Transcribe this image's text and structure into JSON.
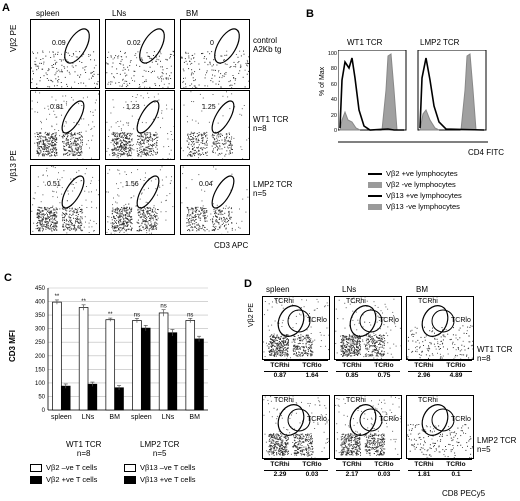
{
  "panels": {
    "A": {
      "letter": "A",
      "col_headers": [
        "spleen",
        "LNs",
        "BM"
      ],
      "y_label_top": "Vβ2 PE",
      "y_label_bottom": "Vβ13 PE",
      "x_label": "CD3 APC",
      "rows": [
        {
          "label": "control A2Kb tg",
          "label_lines": [
            "control",
            "A2Kb tg"
          ],
          "values": [
            "0.09",
            "0.02",
            "0"
          ]
        },
        {
          "label": "WT1 TCR n=8",
          "label_lines": [
            "WT1 TCR",
            "n=8"
          ],
          "values": [
            "0.81",
            "1.23",
            "1.25"
          ]
        },
        {
          "label": "LMP2 TCR n=5",
          "label_lines": [
            "LMP2 TCR",
            "n=5"
          ],
          "values": [
            "0.51",
            "1.56",
            "0.04"
          ]
        }
      ]
    },
    "B": {
      "letter": "B",
      "titles": [
        "WT1 TCR",
        "LMP2 TCR"
      ],
      "y_label": "% of Max",
      "y_ticks": [
        "100",
        "80",
        "60",
        "40",
        "20",
        "0"
      ],
      "x_label": "CD4 FITC",
      "legend": [
        {
          "label": "Vβ2 +ve lymphocytes",
          "style": "black-line"
        },
        {
          "label": "Vβ2  -ve lymphocytes",
          "style": "grey-fill"
        },
        {
          "label": "Vβ13 +ve lymphocytes",
          "style": "black-line"
        },
        {
          "label": "Vβ13  -ve lymphocytes",
          "style": "grey-fill"
        }
      ]
    },
    "C": {
      "letter": "C",
      "y_label": "CD3 MFI",
      "group_labels": [
        "WT1 TCR n=8",
        "LMP2 TCR n=5"
      ],
      "group_lines": [
        [
          "WT1 TCR",
          "n=8"
        ],
        [
          "LMP2 TCR",
          "n=5"
        ]
      ],
      "legend": [
        "Vβ2 –ve T cells",
        "Vβ2 +ve T cells",
        "Vβ13 –ve  T cells",
        "Vβ13 +ve T cells"
      ]
    },
    "D": {
      "letter": "D",
      "col_headers": [
        "spleen",
        "LNs",
        "BM"
      ],
      "y_label": "Vβ2 PE",
      "x_label": "CD8 PECy5",
      "gate_hi": "TCRhi",
      "gate_lo": "TCRlo",
      "rows": [
        {
          "label_lines": [
            "WT1 TCR",
            "n=8"
          ],
          "values": [
            [
              "0.87",
              "1.64"
            ],
            [
              "0.85",
              "0.75"
            ],
            [
              "2.96",
              "4.89"
            ]
          ]
        },
        {
          "label_lines": [
            "LMP2 TCR",
            "n=5"
          ],
          "values": [
            [
              "2.29",
              "0.03"
            ],
            [
              "2.17",
              "0.03"
            ],
            [
              "1.81",
              "0.1"
            ]
          ]
        }
      ]
    }
  },
  "chart_data": {
    "type": "bar",
    "title": "",
    "ylabel": "CD3 MFI",
    "xlabel": "",
    "ylim": [
      0,
      450
    ],
    "yticks": [
      0,
      50,
      100,
      150,
      200,
      250,
      300,
      350,
      400,
      450
    ],
    "categories": [
      "spleen",
      "LNs",
      "BM",
      "spleen",
      "LNs",
      "BM"
    ],
    "series": [
      {
        "name": "Vβ2 –ve T cells / Vβ13 –ve T cells",
        "color": "#ffffff",
        "values": [
          398,
          378,
          333,
          330,
          358,
          330
        ],
        "errors": [
          8,
          10,
          6,
          8,
          12,
          8
        ]
      },
      {
        "name": "Vβ2 +ve T cells / Vβ13 +ve T cells",
        "color": "#000000",
        "values": [
          88,
          95,
          82,
          302,
          285,
          262
        ],
        "errors": [
          8,
          8,
          8,
          10,
          12,
          10
        ]
      }
    ],
    "significance": [
      "**",
      "**",
      "**",
      "ns",
      "ns",
      "ns"
    ],
    "grid": true
  }
}
